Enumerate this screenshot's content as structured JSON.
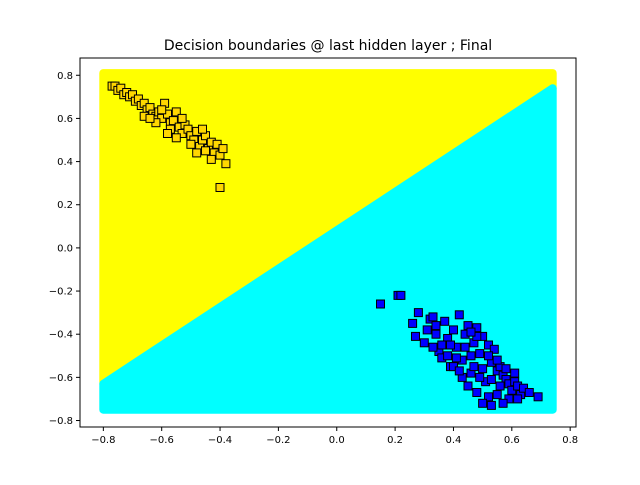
{
  "chart_data": {
    "type": "scatter",
    "title": "Decision boundaries @ last hidden layer ; Final",
    "xlabel": "",
    "ylabel": "",
    "xlim": [
      -0.88,
      0.82
    ],
    "ylim": [
      -0.83,
      0.88
    ],
    "x_ticks": [
      -0.8,
      -0.6,
      -0.4,
      -0.2,
      0.0,
      0.2,
      0.4,
      0.6,
      0.8
    ],
    "x_tick_labels": [
      "−0.8",
      "−0.6",
      "−0.4",
      "−0.2",
      "0.0",
      "0.2",
      "0.4",
      "0.6",
      "0.8"
    ],
    "y_ticks": [
      -0.8,
      -0.6,
      -0.4,
      -0.2,
      0.0,
      0.2,
      0.4,
      0.6,
      0.8
    ],
    "y_tick_labels": [
      "−0.8",
      "−0.6",
      "−0.4",
      "−0.2",
      "0.0",
      "0.2",
      "0.4",
      "0.6",
      "0.8"
    ],
    "grid": false,
    "decision_regions": {
      "x_range": [
        -0.8,
        0.74
      ],
      "y_range": [
        -0.75,
        0.81
      ],
      "boundary": [
        [
          -0.8,
          -0.63
        ],
        [
          0.74,
          0.74
        ]
      ],
      "upper_color": "#ffff00",
      "lower_color": "#00ffff"
    },
    "series": [
      {
        "marker": "square",
        "fill": "#ffd700",
        "edge": "#000000",
        "points": [
          [
            -0.77,
            0.75
          ],
          [
            -0.76,
            0.75
          ],
          [
            -0.75,
            0.73
          ],
          [
            -0.74,
            0.74
          ],
          [
            -0.73,
            0.71
          ],
          [
            -0.72,
            0.72
          ],
          [
            -0.71,
            0.7
          ],
          [
            -0.7,
            0.71
          ],
          [
            -0.69,
            0.68
          ],
          [
            -0.68,
            0.69
          ],
          [
            -0.67,
            0.66
          ],
          [
            -0.66,
            0.67
          ],
          [
            -0.65,
            0.64
          ],
          [
            -0.64,
            0.65
          ],
          [
            -0.63,
            0.62
          ],
          [
            -0.62,
            0.61
          ],
          [
            -0.61,
            0.63
          ],
          [
            -0.6,
            0.6
          ],
          [
            -0.59,
            0.67
          ],
          [
            -0.58,
            0.62
          ],
          [
            -0.57,
            0.58
          ],
          [
            -0.56,
            0.59
          ],
          [
            -0.55,
            0.63
          ],
          [
            -0.54,
            0.56
          ],
          [
            -0.53,
            0.53
          ],
          [
            -0.52,
            0.57
          ],
          [
            -0.51,
            0.55
          ],
          [
            -0.5,
            0.52
          ],
          [
            -0.49,
            0.5
          ],
          [
            -0.48,
            0.54
          ],
          [
            -0.47,
            0.47
          ],
          [
            -0.46,
            0.5
          ],
          [
            -0.45,
            0.52
          ],
          [
            -0.44,
            0.46
          ],
          [
            -0.43,
            0.49
          ],
          [
            -0.42,
            0.44
          ],
          [
            -0.41,
            0.48
          ],
          [
            -0.4,
            0.43
          ],
          [
            -0.39,
            0.46
          ],
          [
            -0.38,
            0.39
          ],
          [
            -0.4,
            0.28
          ],
          [
            -0.66,
            0.61
          ],
          [
            -0.62,
            0.58
          ],
          [
            -0.6,
            0.64
          ],
          [
            -0.57,
            0.55
          ],
          [
            -0.55,
            0.51
          ],
          [
            -0.53,
            0.6
          ],
          [
            -0.5,
            0.48
          ],
          [
            -0.48,
            0.44
          ],
          [
            -0.45,
            0.45
          ],
          [
            -0.43,
            0.41
          ],
          [
            -0.46,
            0.55
          ],
          [
            -0.64,
            0.6
          ],
          [
            -0.58,
            0.53
          ]
        ]
      },
      {
        "marker": "square",
        "fill": "#0000ff",
        "edge": "#000000",
        "points": [
          [
            0.15,
            -0.26
          ],
          [
            0.21,
            -0.22
          ],
          [
            0.22,
            -0.22
          ],
          [
            0.26,
            -0.35
          ],
          [
            0.28,
            -0.3
          ],
          [
            0.27,
            -0.41
          ],
          [
            0.3,
            -0.44
          ],
          [
            0.31,
            -0.38
          ],
          [
            0.32,
            -0.33
          ],
          [
            0.33,
            -0.32
          ],
          [
            0.34,
            -0.36
          ],
          [
            0.35,
            -0.48
          ],
          [
            0.36,
            -0.51
          ],
          [
            0.37,
            -0.34
          ],
          [
            0.38,
            -0.42
          ],
          [
            0.39,
            -0.55
          ],
          [
            0.4,
            -0.38
          ],
          [
            0.41,
            -0.46
          ],
          [
            0.42,
            -0.31
          ],
          [
            0.43,
            -0.52
          ],
          [
            0.44,
            -0.4
          ],
          [
            0.45,
            -0.36
          ],
          [
            0.46,
            -0.58
          ],
          [
            0.47,
            -0.44
          ],
          [
            0.48,
            -0.37
          ],
          [
            0.49,
            -0.49
          ],
          [
            0.5,
            -0.41
          ],
          [
            0.51,
            -0.62
          ],
          [
            0.52,
            -0.45
          ],
          [
            0.53,
            -0.53
          ],
          [
            0.54,
            -0.47
          ],
          [
            0.55,
            -0.57
          ],
          [
            0.56,
            -0.55
          ],
          [
            0.57,
            -0.59
          ],
          [
            0.58,
            -0.61
          ],
          [
            0.59,
            -0.63
          ],
          [
            0.6,
            -0.66
          ],
          [
            0.61,
            -0.62
          ],
          [
            0.62,
            -0.64
          ],
          [
            0.63,
            -0.68
          ],
          [
            0.64,
            -0.65
          ],
          [
            0.66,
            -0.67
          ],
          [
            0.69,
            -0.69
          ],
          [
            0.55,
            -0.68
          ],
          [
            0.52,
            -0.69
          ],
          [
            0.5,
            -0.72
          ],
          [
            0.48,
            -0.67
          ],
          [
            0.45,
            -0.64
          ],
          [
            0.43,
            -0.6
          ],
          [
            0.4,
            -0.55
          ],
          [
            0.38,
            -0.5
          ],
          [
            0.36,
            -0.45
          ],
          [
            0.42,
            -0.57
          ],
          [
            0.46,
            -0.5
          ],
          [
            0.5,
            -0.56
          ],
          [
            0.53,
            -0.61
          ],
          [
            0.56,
            -0.64
          ],
          [
            0.59,
            -0.7
          ],
          [
            0.57,
            -0.72
          ],
          [
            0.44,
            -0.46
          ],
          [
            0.47,
            -0.55
          ],
          [
            0.49,
            -0.6
          ],
          [
            0.41,
            -0.51
          ],
          [
            0.39,
            -0.45
          ],
          [
            0.34,
            -0.4
          ],
          [
            0.33,
            -0.46
          ],
          [
            0.52,
            -0.5
          ],
          [
            0.55,
            -0.52
          ],
          [
            0.48,
            -0.41
          ],
          [
            0.46,
            -0.39
          ],
          [
            0.58,
            -0.56
          ],
          [
            0.61,
            -0.58
          ],
          [
            0.62,
            -0.7
          ],
          [
            0.53,
            -0.73
          ]
        ]
      }
    ]
  }
}
